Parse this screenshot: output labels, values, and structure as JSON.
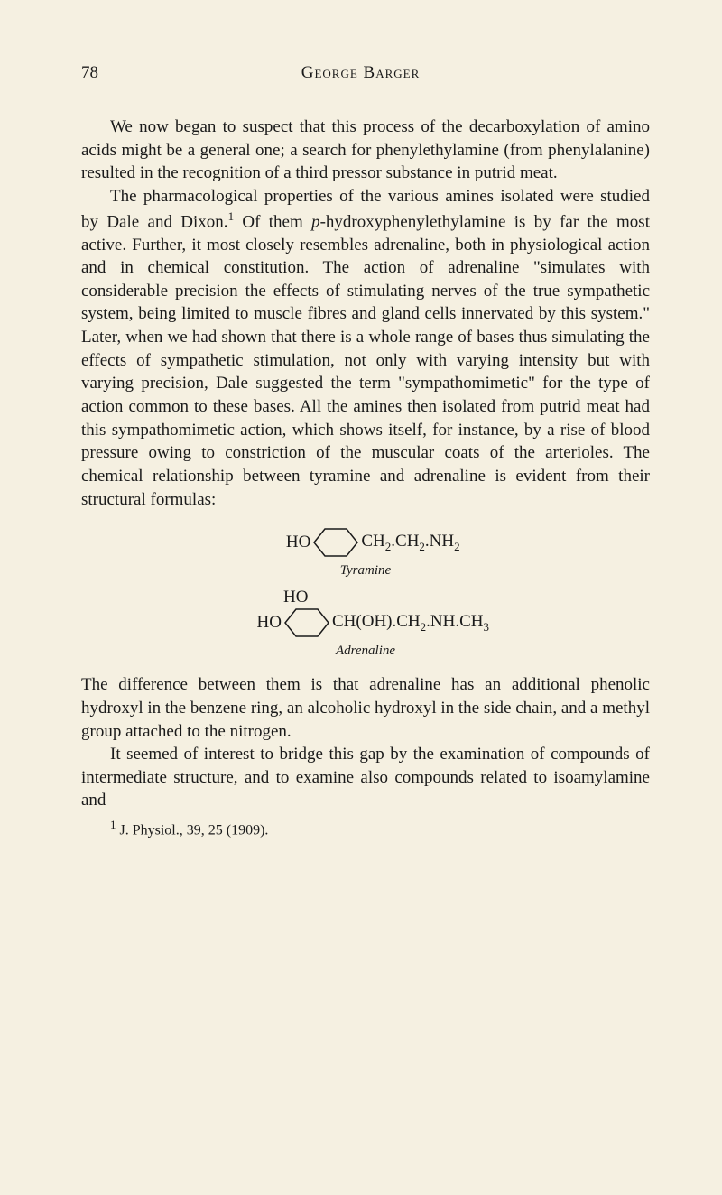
{
  "page_number": "78",
  "author": "George Barger",
  "paragraphs": {
    "p1": "We now began to suspect that this process of the decarboxylation of amino acids might be a general one; a search for phenylethylamine (from phenylalanine) re­sulted in the recognition of a third pressor substance in putrid meat.",
    "p2_part1": "The pharmacological properties of the various amines isolated were studied by Dale and Dixon.",
    "p2_ref": "1",
    "p2_part2": " Of them ",
    "p2_italic": "p",
    "p2_part3": "-hydroxyphenylethylamine is by far the most active. Further, it most closely resembles adrenaline, both in physiological action and in chemical constitution. The action of adrenaline \"simulates with considerable pre­cision the effects of stimulating nerves of the true sym­pathetic system, being limited to muscle fibres and gland cells innervated by this system.\" Later, when we had shown that there is a whole range of bases thus simulating the effects of sympathetic stimulation, not only with varying intensity but with varying precision, Dale sug­gested the term \"sympathomimetic\" for the type of action common to these bases. All the amines then isolated from putrid meat had this sympathomimetic action, which shows itself, for instance, by a rise of blood pressure owing to constriction of the muscular coats of the arterioles. The chemical relationship between tyramine and adrenaline is evident from their structural formulas:",
    "p3": "The difference between them is that adrenaline has an additional phenolic hydroxyl in the benzene ring, an alco­holic hydroxyl in the side chain, and a methyl group attached to the nitrogen.",
    "p4": "It seemed of interest to bridge this gap by the exami­nation of compounds of intermediate structure, and to examine also compounds related to isoamylamine and"
  },
  "chemistry": {
    "tyramine": {
      "left": "HO",
      "right_html": "CH<sub>2</sub>.CH<sub>2</sub>.NH<sub>2</sub>",
      "label": "Tyramine"
    },
    "adrenaline": {
      "ho_top": "HO",
      "left": "HO",
      "right_html": "CH(OH).CH<sub>2</sub>.NH.CH<sub>3</sub>",
      "label": "Adrenaline"
    }
  },
  "footnote": {
    "ref": "1",
    "text": " J. Physiol., 39, 25 (1909)."
  }
}
